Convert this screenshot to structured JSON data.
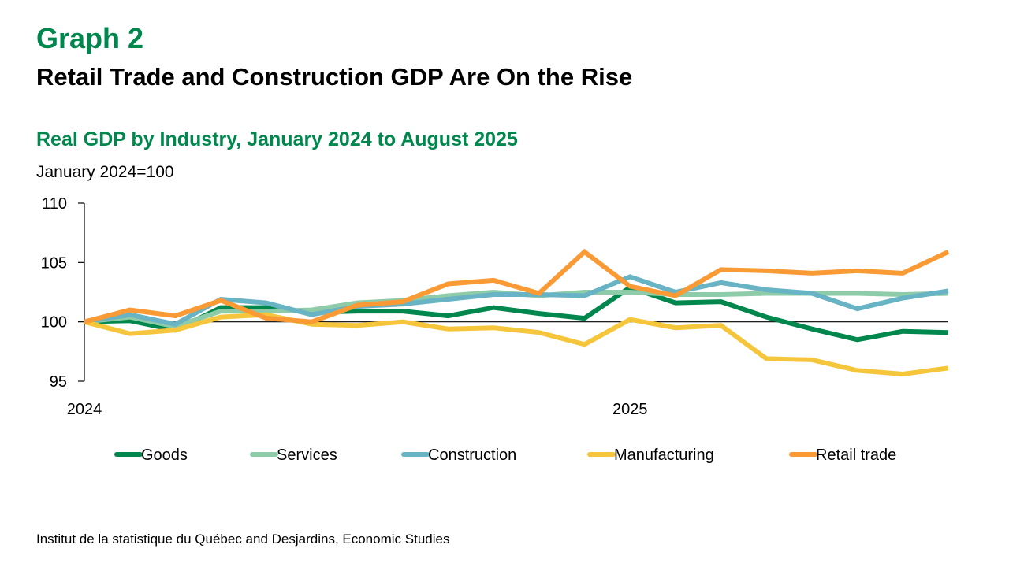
{
  "header": {
    "graph_number": "Graph 2",
    "headline": "Retail Trade and Construction GDP Are On the Rise",
    "subtitle": "Real GDP by Industry, January 2024 to August 2025",
    "unit": "January 2024=100"
  },
  "footer": {
    "source": "Institut de la statistique du Québec and Desjardins, Economic Studies"
  },
  "chart_data": {
    "type": "line",
    "title": "Real GDP by Industry, January 2024 to August 2025",
    "ylabel": "January 2024=100",
    "xlabel": "",
    "ylim": [
      95,
      110
    ],
    "yticks": [
      95,
      100,
      105,
      110
    ],
    "ytick_labels": [
      "95",
      "100",
      "105",
      "110"
    ],
    "grid": false,
    "reference_line": 100,
    "legend_position": "bottom",
    "x": [
      "2024-01",
      "2024-02",
      "2024-03",
      "2024-04",
      "2024-05",
      "2024-06",
      "2024-07",
      "2024-08",
      "2024-09",
      "2024-10",
      "2024-11",
      "2024-12",
      "2025-01",
      "2025-02",
      "2025-03",
      "2025-04",
      "2025-05",
      "2025-06",
      "2025-07",
      "2025-08"
    ],
    "xtick_labels": [
      {
        "index": 0,
        "label": "2024"
      },
      {
        "index": 12,
        "label": "2025"
      }
    ],
    "series": [
      {
        "name": "Goods",
        "color": "#00874d",
        "values": [
          100.0,
          100.1,
          99.3,
          101.2,
          101.2,
          100.8,
          100.9,
          100.9,
          100.5,
          101.2,
          100.7,
          100.3,
          102.9,
          101.6,
          101.7,
          100.4,
          99.4,
          98.5,
          99.2,
          99.1
        ]
      },
      {
        "name": "Services",
        "color": "#8ecba8",
        "values": [
          100.0,
          100.4,
          99.6,
          100.9,
          100.9,
          101.0,
          101.6,
          101.8,
          102.2,
          102.5,
          102.2,
          102.5,
          102.5,
          102.3,
          102.3,
          102.4,
          102.4,
          102.4,
          102.3,
          102.4
        ]
      },
      {
        "name": "Construction",
        "color": "#68b3c4",
        "values": [
          100.0,
          100.6,
          99.8,
          101.9,
          101.6,
          100.6,
          101.3,
          101.5,
          101.9,
          102.3,
          102.3,
          102.2,
          103.8,
          102.5,
          103.3,
          102.7,
          102.4,
          101.1,
          102.0,
          102.6
        ]
      },
      {
        "name": "Manufacturing",
        "color": "#f5c63b",
        "values": [
          100.0,
          99.0,
          99.3,
          100.4,
          100.6,
          99.8,
          99.7,
          100.0,
          99.4,
          99.5,
          99.1,
          98.1,
          100.2,
          99.5,
          99.7,
          96.9,
          96.8,
          95.9,
          95.6,
          96.1
        ]
      },
      {
        "name": "Retail trade",
        "color": "#f99a35",
        "values": [
          100.0,
          101.0,
          100.5,
          101.8,
          100.3,
          100.0,
          101.4,
          101.7,
          103.2,
          103.5,
          102.4,
          105.9,
          103.0,
          102.2,
          104.4,
          104.3,
          104.1,
          104.3,
          104.1,
          105.9
        ]
      }
    ]
  }
}
